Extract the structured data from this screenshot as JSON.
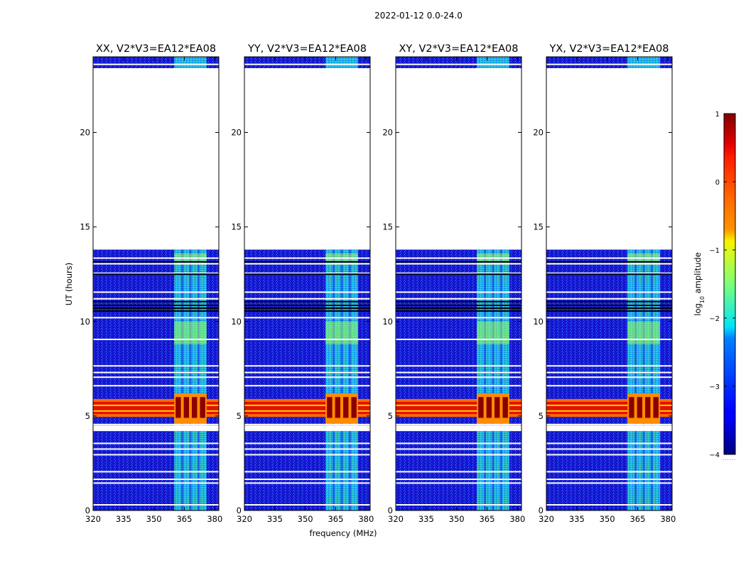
{
  "chart_data": {
    "type": "heatmap",
    "suptitle": "2022-01-12 0.0-24.0",
    "xlabel": "frequency (MHz)",
    "ylabel": "UT (hours)",
    "xlim": [
      320,
      382
    ],
    "ylim": [
      0,
      24
    ],
    "xticks": [
      "320",
      "335",
      "350",
      "365",
      "380"
    ],
    "xtick_values": [
      320,
      335,
      350,
      365,
      380
    ],
    "yticks": [
      "0",
      "5",
      "10",
      "15",
      "20"
    ],
    "ytick_values": [
      0,
      5,
      10,
      15,
      20
    ],
    "panels": [
      {
        "title": "XX, V2*V3=EA12*EA08",
        "narrow_rfi": false
      },
      {
        "title": "YY, V2*V3=EA12*EA08",
        "narrow_rfi": true
      },
      {
        "title": "XY, V2*V3=EA12*EA08",
        "narrow_rfi": true
      },
      {
        "title": "YX, V2*V3=EA12*EA08",
        "narrow_rfi": false
      }
    ],
    "data_gap_hours": [
      13.8,
      23.4
    ],
    "rfi_band_mhz": [
      360,
      376
    ],
    "strong_rfi_hours": [
      4.6,
      6.2
    ],
    "colorbar": {
      "label_prefix": "log",
      "label_sub": "10",
      "label_suffix": " amplitude",
      "range": [
        -4,
        1
      ],
      "ticks": [
        "−4",
        "−3",
        "−2",
        "−1",
        "0",
        "1"
      ],
      "tick_values": [
        -4,
        -3,
        -2,
        -1,
        0,
        1
      ],
      "colormap": "jet",
      "footer": "......"
    }
  }
}
